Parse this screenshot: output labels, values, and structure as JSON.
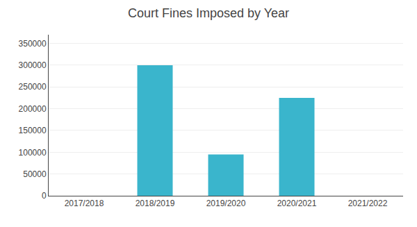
{
  "chart_data": {
    "type": "bar",
    "title": "Court Fines Imposed by Year",
    "categories": [
      "2017/2018",
      "2018/2019",
      "2019/2020",
      "2020/2021",
      "2021/2022"
    ],
    "values": [
      0,
      300000,
      95000,
      225000,
      0
    ],
    "color": "#3ab5cc",
    "ylim": [
      0,
      370000
    ],
    "yticks": [
      0,
      50000,
      100000,
      150000,
      200000,
      250000,
      300000,
      350000
    ],
    "grid": true
  }
}
